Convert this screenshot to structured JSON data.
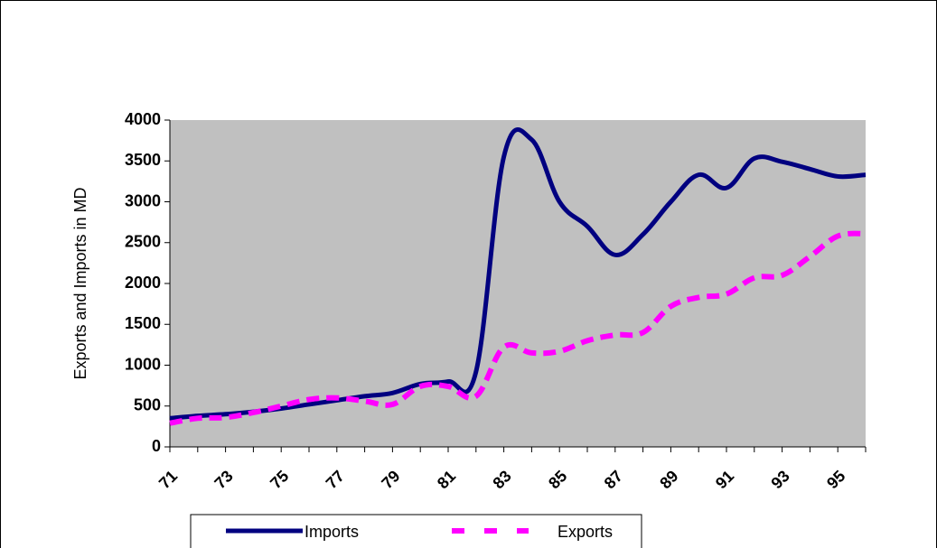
{
  "chart_data": {
    "type": "line",
    "y_label": "Exports and Imports in MD",
    "categories": [
      "71",
      null,
      "73",
      null,
      "75",
      null,
      "77",
      null,
      "79",
      null,
      "81",
      null,
      "83",
      null,
      "85",
      null,
      "87",
      null,
      "89",
      null,
      "91",
      null,
      "93",
      null,
      "95",
      null
    ],
    "series": [
      {
        "name": "Imports",
        "color": "#000080",
        "dashed": false,
        "values": [
          350,
          380,
          400,
          430,
          470,
          520,
          570,
          620,
          660,
          770,
          800,
          920,
          3550,
          3760,
          3000,
          2700,
          2350,
          2600,
          3000,
          3330,
          3170,
          3530,
          3490,
          3400,
          3310,
          3330
        ]
      },
      {
        "name": "Exports",
        "color": "#ff00ff",
        "dashed": true,
        "values": [
          290,
          350,
          360,
          420,
          500,
          580,
          600,
          560,
          520,
          740,
          740,
          620,
          1220,
          1150,
          1170,
          1300,
          1370,
          1400,
          1720,
          1830,
          1870,
          2070,
          2100,
          2330,
          2580,
          2610
        ]
      }
    ],
    "ylim": [
      0,
      4000
    ],
    "yticks": [
      0,
      500,
      1000,
      1500,
      2000,
      2500,
      3000,
      3500,
      4000
    ],
    "plot_background": "#c0c0c0",
    "legend": "bottom"
  }
}
